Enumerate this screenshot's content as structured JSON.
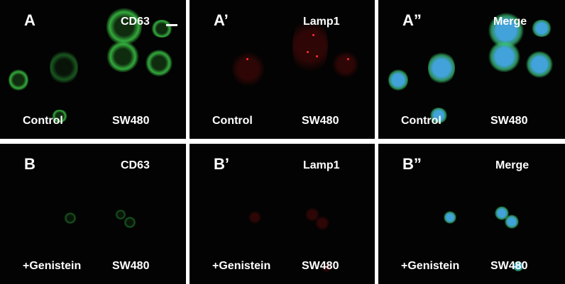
{
  "panels": [
    {
      "letter": "A",
      "marker": "CD63",
      "condition": "Control",
      "cell_line": "SW480",
      "channel": "green"
    },
    {
      "letter": "A’",
      "marker": "Lamp1",
      "condition": "Control",
      "cell_line": "SW480",
      "channel": "red"
    },
    {
      "letter": "A”",
      "marker": "Merge",
      "condition": "Control",
      "cell_line": "SW480",
      "channel": "merge"
    },
    {
      "letter": "B",
      "marker": "CD63",
      "condition": "+Genistein",
      "cell_line": "SW480",
      "channel": "green"
    },
    {
      "letter": "B’",
      "marker": "Lamp1",
      "condition": "+Genistein",
      "cell_line": "SW480",
      "channel": "red"
    },
    {
      "letter": "B”",
      "marker": "Merge",
      "condition": "+Genistein",
      "cell_line": "SW480",
      "channel": "merge"
    }
  ],
  "colors": {
    "green": "#3cc846",
    "red": "#ff3030",
    "blue": "#46aae6",
    "background": "#020302"
  }
}
